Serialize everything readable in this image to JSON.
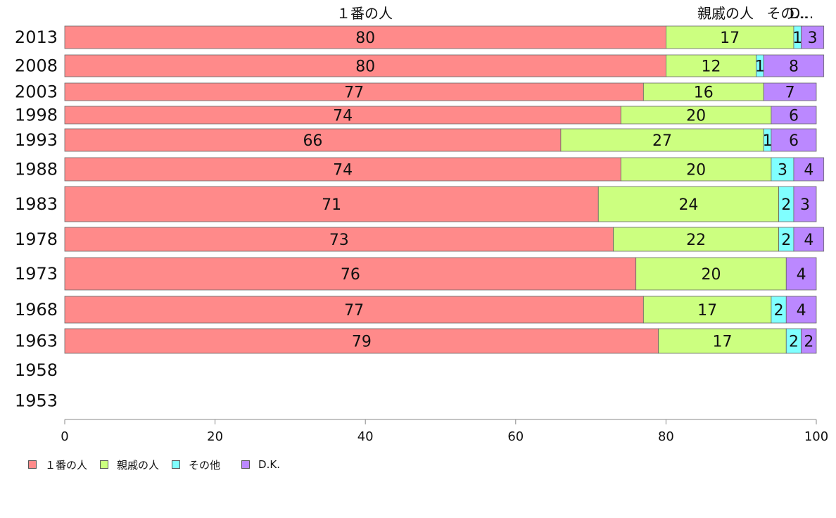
{
  "chart_data": {
    "type": "bar",
    "orientation": "horizontal",
    "stacked": true,
    "categories": [
      "2013",
      "2008",
      "2003",
      "1998",
      "1993",
      "1988",
      "1983",
      "1978",
      "1973",
      "1968",
      "1963",
      "1958",
      "1953"
    ],
    "series": [
      {
        "name": "１番の人",
        "color": "#ff8a8a",
        "values": [
          80,
          80,
          77,
          74,
          66,
          74,
          71,
          73,
          76,
          77,
          79,
          null,
          null
        ]
      },
      {
        "name": "親戚の人",
        "color": "#ccff80",
        "values": [
          17,
          12,
          16,
          20,
          27,
          20,
          24,
          22,
          20,
          17,
          17,
          null,
          null
        ]
      },
      {
        "name": "その他",
        "color": "#80ffff",
        "values": [
          1,
          1,
          0,
          0,
          1,
          3,
          2,
          2,
          0,
          2,
          2,
          null,
          null
        ]
      },
      {
        "name": "D.K.",
        "color": "#bb88ff",
        "values": [
          3,
          8,
          7,
          6,
          6,
          4,
          3,
          4,
          4,
          4,
          2,
          null,
          null
        ]
      }
    ],
    "top_labels": [
      "１番の人",
      "親戚の人",
      "その他",
      "D.K."
    ],
    "top_labels_display": [
      "１番の人",
      "親戚の人",
      "その...",
      "D..."
    ],
    "xlim": [
      0,
      100
    ],
    "xticks": [
      "0",
      "20",
      "40",
      "60",
      "80",
      "100"
    ],
    "grid": false,
    "legend": "bottom-left"
  }
}
